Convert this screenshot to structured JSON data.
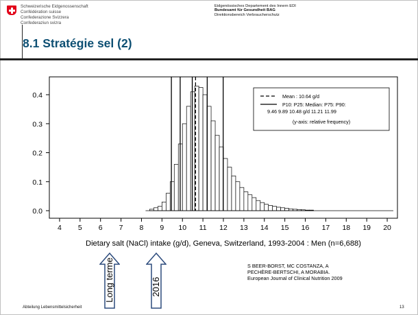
{
  "header": {
    "org_lines": [
      "Schweizerische Eidgenossenschaft",
      "Confédération suisse",
      "Confederazione Svizzera",
      "Confederaziun svizra"
    ],
    "dept": "Eidgenössisches Departement des Innern EDI",
    "office": "Bundesamt für Gesundheit BAG",
    "division": "Direktionsbereich Verbraucherschutz"
  },
  "slide_title": "8.1 Stratégie sel (2)",
  "footer": {
    "left": "Abteilung Lebensmittelsicherheit",
    "page": "13"
  },
  "citation": [
    "S BEER-BORST, MC COSTANZA, A",
    "PECHÈRE-BERTSCHI, A MORABIA.",
    "European Journal of Clinical Nutrition 2009"
  ],
  "arrows": [
    {
      "label": "Long terme"
    },
    {
      "label": "2016"
    }
  ],
  "chart_data": {
    "type": "bar",
    "xlabel": "Dietary salt (NaCl) intake (g/d), Geneva, Switzerland, 1993-2004 : Men (n=6,688)",
    "ylabel": "",
    "xlim": [
      3.5,
      20.5
    ],
    "ylim": [
      0,
      0.45
    ],
    "x_ticks": [
      "4",
      "5",
      "6",
      "7",
      "8",
      "9",
      "10",
      "11",
      "12",
      "13",
      "14",
      "15",
      "16",
      "17",
      "18",
      "19",
      "20"
    ],
    "y_ticks": [
      "0.0",
      "0.1",
      "0.2",
      "0.3",
      "0.4"
    ],
    "bin_width": 0.2,
    "bin_start": 8.4,
    "values": [
      0.005,
      0.01,
      0.015,
      0.03,
      0.06,
      0.1,
      0.16,
      0.23,
      0.3,
      0.36,
      0.41,
      0.43,
      0.425,
      0.4,
      0.36,
      0.31,
      0.26,
      0.22,
      0.18,
      0.15,
      0.12,
      0.1,
      0.08,
      0.065,
      0.055,
      0.045,
      0.035,
      0.028,
      0.022,
      0.018,
      0.015,
      0.012,
      0.01,
      0.008,
      0.006,
      0.005,
      0.004,
      0.003,
      0.002,
      0.002
    ],
    "reference_lines": {
      "mean": 10.64,
      "p10": 9.46,
      "p25": 9.89,
      "median": 10.48,
      "p75": 11.21,
      "p90": 11.99
    },
    "legend": {
      "mean_text": "Mean :       10.64 g/d",
      "pct_header": "P10:  P25:  Median:  P75:  P90:",
      "pct_values": "9.46  9.89  10.48 g/d 11.21 11.99",
      "note": "(y-axis: relative frequency)",
      "position": "top-right"
    }
  }
}
